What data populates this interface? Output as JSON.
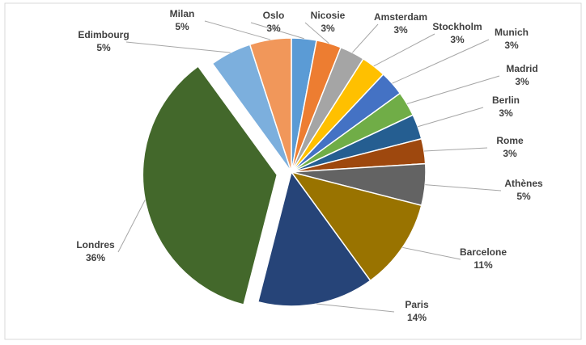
{
  "chart_data": {
    "type": "pie",
    "categories": [
      "Oslo",
      "Nicosie",
      "Amsterdam",
      "Stockholm",
      "Munich",
      "Madrid",
      "Berlin",
      "Rome",
      "Athènes",
      "Barcelone",
      "Paris",
      "Londres",
      "Edimbourg",
      "Milan"
    ],
    "values": [
      3,
      3,
      3,
      3,
      3,
      3,
      3,
      3,
      5,
      11,
      14,
      36,
      5,
      5
    ],
    "value_labels": [
      "3%",
      "3%",
      "3%",
      "3%",
      "3%",
      "3%",
      "3%",
      "3%",
      "5%",
      "11%",
      "14%",
      "36%",
      "5%",
      "5%"
    ],
    "colors": [
      "#5b9bd5",
      "#ed7d31",
      "#a5a5a5",
      "#ffc000",
      "#4472c4",
      "#70ad47",
      "#255e91",
      "#9e480e",
      "#636363",
      "#997300",
      "#264478",
      "#43682b",
      "#7cafdd",
      "#f1975a"
    ]
  }
}
